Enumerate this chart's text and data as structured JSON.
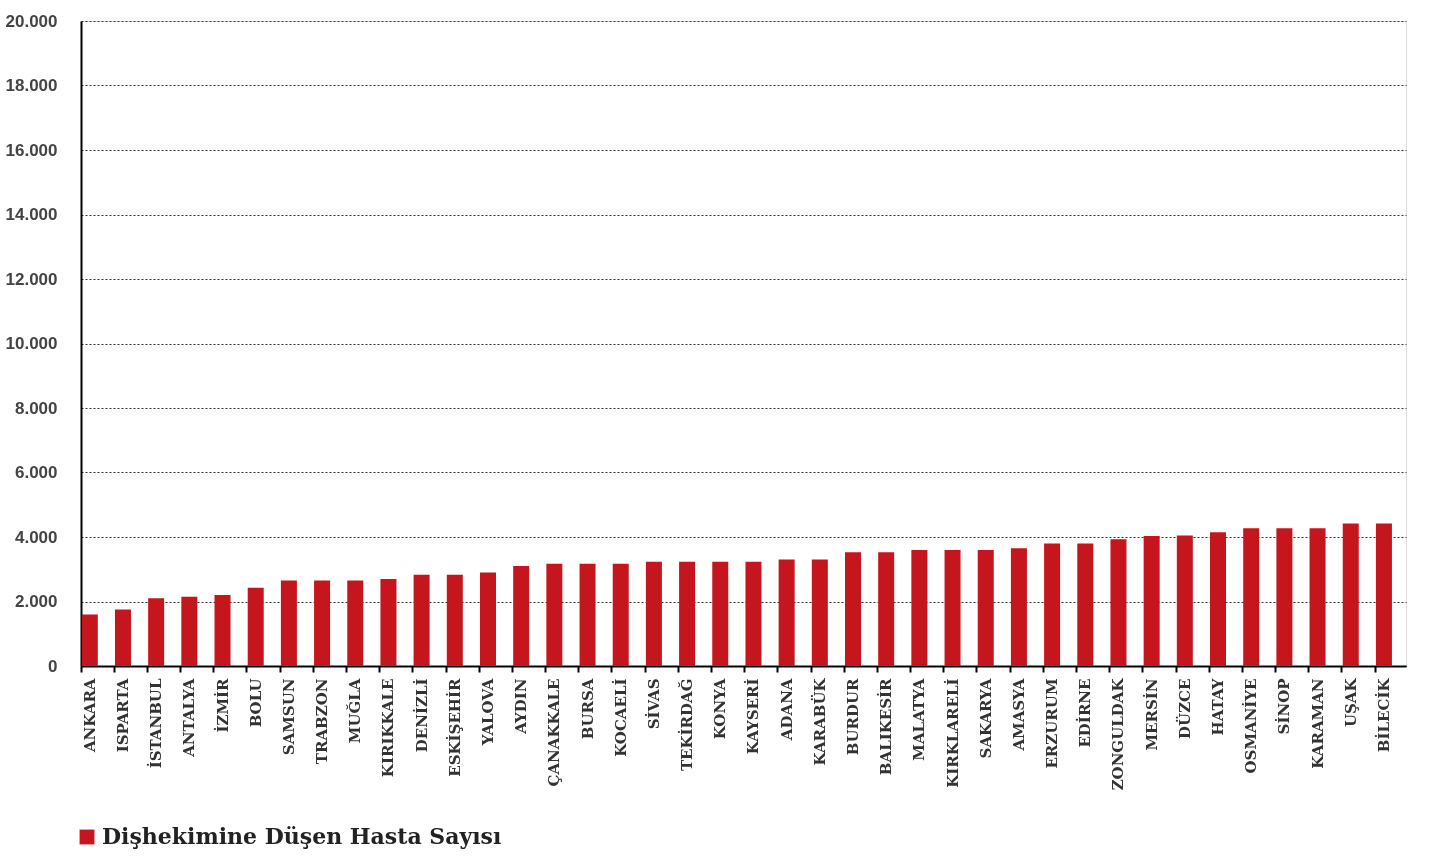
{
  "chart_data": {
    "type": "bar",
    "categories": [
      "ANKARA",
      "ISPARTA",
      "İSTANBUL",
      "ANTALYA",
      "İZMİR",
      "BOLU",
      "SAMSUN",
      "TRABZON",
      "MUĞLA",
      "KIRIKKALE",
      "DENİZLİ",
      "ESKİŞEHİR",
      "YALOVA",
      "AYDIN",
      "ÇANAKKALE",
      "BURSA",
      "KOCAELİ",
      "SİVAS",
      "TEKİRDAĞ",
      "KONYA",
      "KAYSERİ",
      "ADANA",
      "KARABÜK",
      "BURDUR",
      "BALIKESİR",
      "MALATYA",
      "KIRKLARELİ",
      "SAKARYA",
      "AMASYA",
      "ERZURUM",
      "EDİRNE",
      "ZONGULDAK",
      "MERSİN",
      "DÜZCE",
      "HATAY",
      "OSMANİYE",
      "SİNOP",
      "KARAMAN",
      "UŞAK",
      "BİLECİK"
    ],
    "series": [
      {
        "name": "Dişhekimine Düşen Hasta Sayısı",
        "color": "#c4161c",
        "values": [
          1600,
          1750,
          2100,
          2150,
          2200,
          2430,
          2650,
          2650,
          2650,
          2700,
          2830,
          2830,
          2900,
          3100,
          3170,
          3170,
          3170,
          3230,
          3230,
          3230,
          3230,
          3300,
          3300,
          3530,
          3530,
          3600,
          3600,
          3600,
          3650,
          3800,
          3800,
          3930,
          4030,
          4050,
          4150,
          4270,
          4270,
          4270,
          4420,
          4420
        ]
      }
    ],
    "ylim": [
      0,
      20000
    ],
    "yticks": [
      {
        "value": 0,
        "label": "0"
      },
      {
        "value": 2000,
        "label": "2.000"
      },
      {
        "value": 4000,
        "label": "4.000"
      },
      {
        "value": 6000,
        "label": "6.000"
      },
      {
        "value": 8000,
        "label": "8.000"
      },
      {
        "value": 10000,
        "label": "10.000"
      },
      {
        "value": 12000,
        "label": "12.000"
      },
      {
        "value": 14000,
        "label": "14.000"
      },
      {
        "value": 16000,
        "label": "16.000"
      },
      {
        "value": 18000,
        "label": "18.000"
      },
      {
        "value": 20000,
        "label": "20.000"
      }
    ],
    "grid": "y",
    "legend": "bottom left"
  }
}
